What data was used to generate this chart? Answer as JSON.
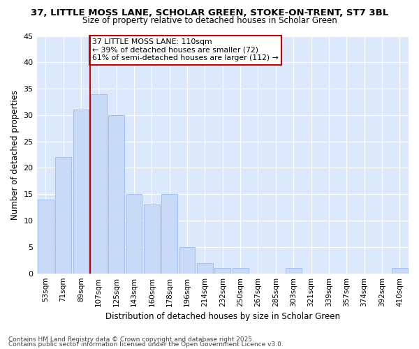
{
  "title1": "37, LITTLE MOSS LANE, SCHOLAR GREEN, STOKE-ON-TRENT, ST7 3BL",
  "title2": "Size of property relative to detached houses in Scholar Green",
  "xlabel": "Distribution of detached houses by size in Scholar Green",
  "ylabel": "Number of detached properties",
  "categories": [
    "53sqm",
    "71sqm",
    "89sqm",
    "107sqm",
    "125sqm",
    "143sqm",
    "160sqm",
    "178sqm",
    "196sqm",
    "214sqm",
    "232sqm",
    "250sqm",
    "267sqm",
    "285sqm",
    "303sqm",
    "321sqm",
    "339sqm",
    "357sqm",
    "374sqm",
    "392sqm",
    "410sqm"
  ],
  "values": [
    14,
    22,
    31,
    34,
    30,
    15,
    13,
    15,
    5,
    2,
    1,
    1,
    0,
    0,
    1,
    0,
    0,
    0,
    0,
    0,
    1
  ],
  "bar_color": "#c9daf8",
  "bar_edge_color": "#a4c2f4",
  "ref_line_index": 3,
  "ref_line_label": "37 LITTLE MOSS LANE: 110sqm",
  "annotation_line1": "← 39% of detached houses are smaller (72)",
  "annotation_line2": "61% of semi-detached houses are larger (112) →",
  "annotation_box_color": "#ffffff",
  "annotation_box_edge": "#cc0000",
  "ref_line_color": "#cc0000",
  "ylim": [
    0,
    45
  ],
  "bg_color": "#dce8fb",
  "fig_bg_color": "#ffffff",
  "footer1": "Contains HM Land Registry data © Crown copyright and database right 2025.",
  "footer2": "Contains public sector information licensed under the Open Government Licence v3.0."
}
